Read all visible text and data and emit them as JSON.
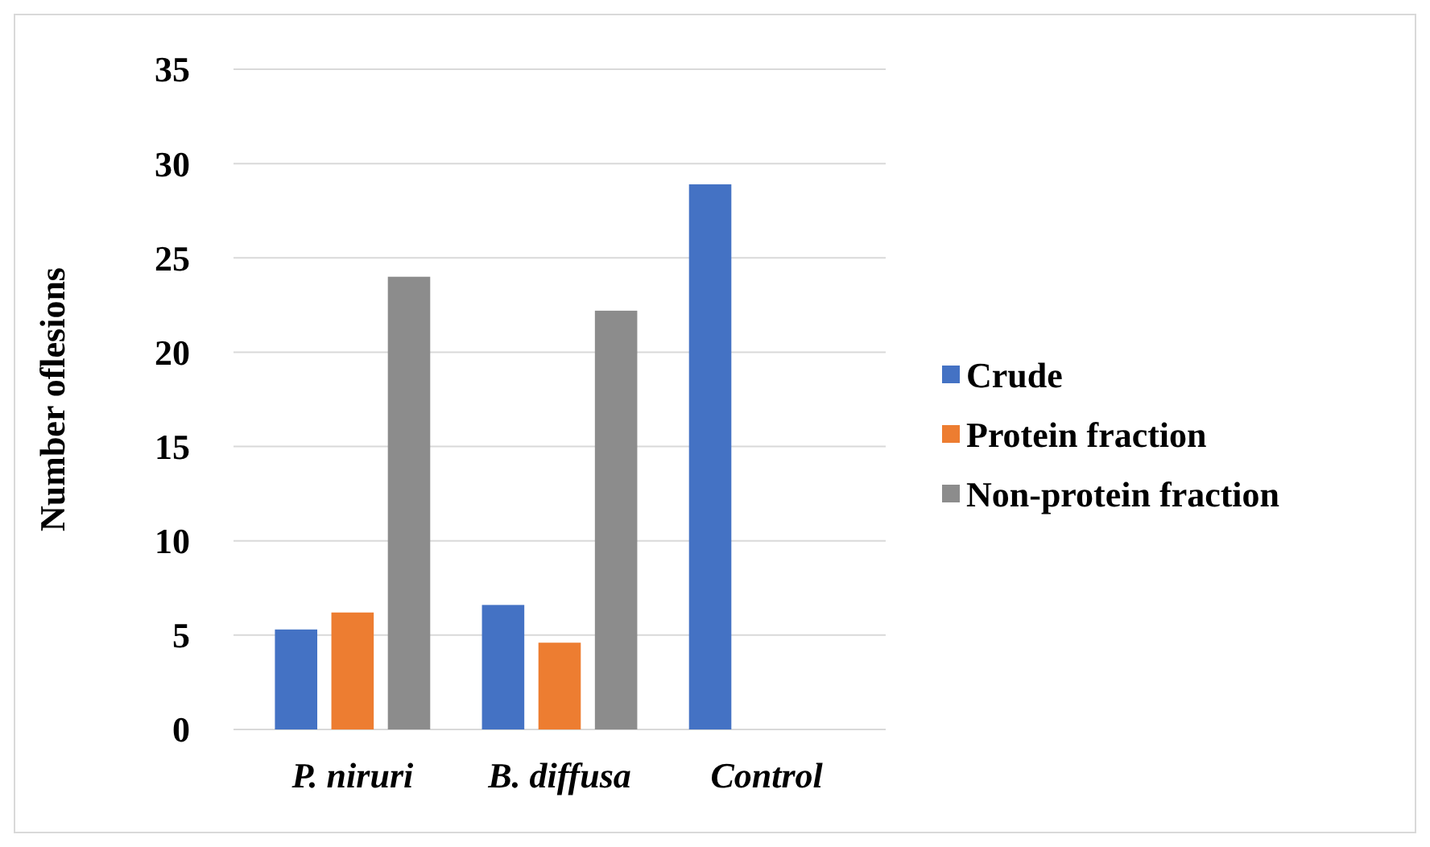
{
  "chart_data": {
    "type": "bar",
    "ylabel": "Number oflesions",
    "categories": [
      "P. niruri",
      "B. diffusa",
      "Control"
    ],
    "series": [
      {
        "name": "Crude",
        "color": "#4472c4",
        "values": [
          5.3,
          6.6,
          28.9
        ]
      },
      {
        "name": "Protein fraction",
        "color": "#ed7d31",
        "values": [
          6.2,
          4.6,
          null
        ]
      },
      {
        "name": "Non-protein fraction",
        "color": "#8c8c8c",
        "values": [
          24,
          22.2,
          null
        ]
      }
    ],
    "ylim": [
      0,
      35
    ],
    "yticks": [
      0,
      5,
      10,
      15,
      20,
      25,
      30,
      35
    ],
    "grid": "y",
    "legend": "right"
  }
}
